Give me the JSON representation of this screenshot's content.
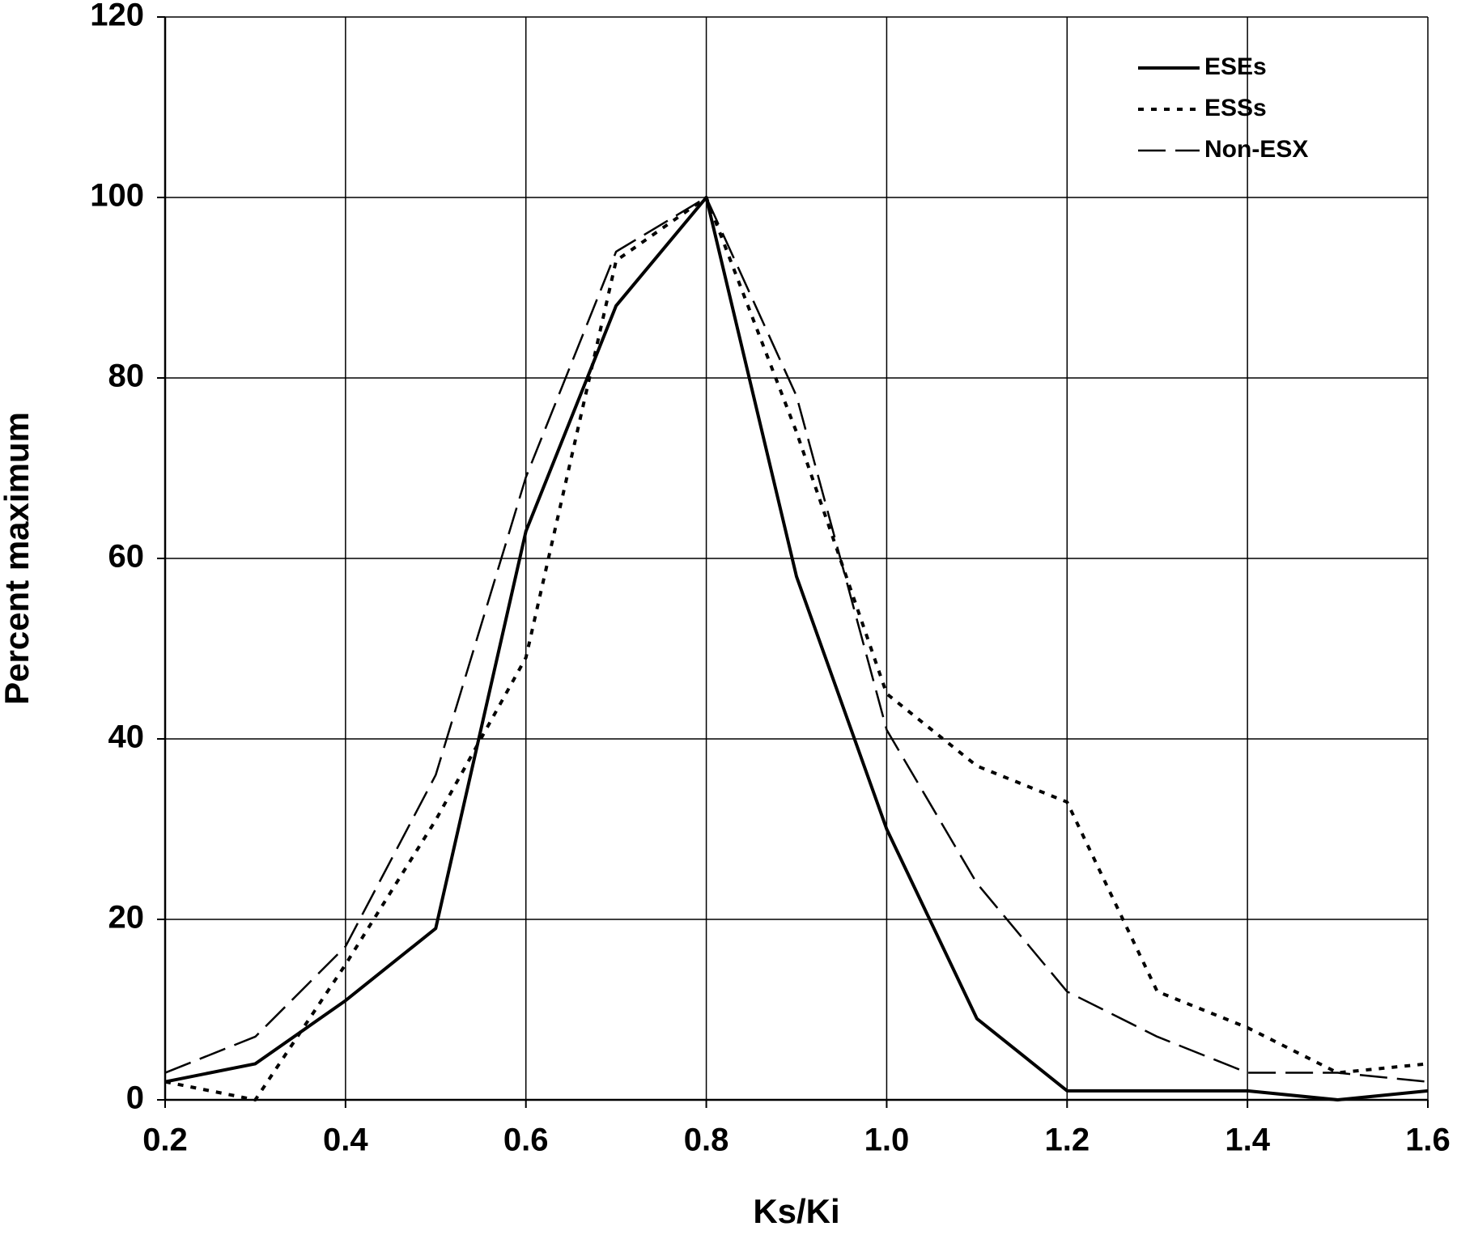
{
  "chart_data": {
    "type": "line",
    "x_label": "Ks/Ki",
    "y_label": "Percent maximum",
    "x": [
      0.2,
      0.3,
      0.4,
      0.5,
      0.6,
      0.7,
      0.8,
      0.9,
      1.0,
      1.1,
      1.2,
      1.3,
      1.4,
      1.5,
      1.6
    ],
    "series": [
      {
        "name": "ESEs",
        "color": "#000000",
        "dash": "solid",
        "values": [
          2,
          4,
          11,
          19,
          63,
          88,
          100,
          58,
          30,
          9,
          1,
          1,
          1,
          0,
          1
        ]
      },
      {
        "name": "ESSs",
        "color": "#000000",
        "dash": "dotted",
        "values": [
          2,
          0,
          15,
          31,
          49,
          93,
          100,
          74,
          45,
          37,
          33,
          12,
          8,
          3,
          4
        ]
      },
      {
        "name": "Non-ESX",
        "color": "#000000",
        "dash": "dashed",
        "values": [
          3,
          7,
          17,
          36,
          69,
          94,
          100,
          78,
          41,
          24,
          12,
          7,
          3,
          3,
          2
        ]
      }
    ],
    "xlim": [
      0.2,
      1.6
    ],
    "xticks": [
      0.2,
      0.4,
      0.6,
      0.8,
      {
        "value": 1,
        "label": "1.0"
      },
      1.2,
      1.4,
      1.6
    ],
    "ylim": [
      0,
      120
    ],
    "yticks": [
      0,
      20,
      40,
      60,
      80,
      100,
      120
    ],
    "grid": true,
    "legend": "upper right"
  }
}
